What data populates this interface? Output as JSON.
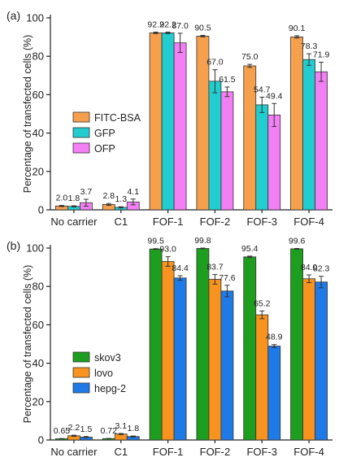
{
  "chart_data": [
    {
      "panel_label": "(a)",
      "type": "bar",
      "ylabel": "Percentage of transfected cells (%)",
      "xlabel": "",
      "ylim": [
        0,
        100
      ],
      "yticks": [
        0,
        20,
        40,
        60,
        80,
        100
      ],
      "grid": false,
      "legend_position": "center-left",
      "categories": [
        "No carrier",
        "C1",
        "FOF-1",
        "FOF-2",
        "FOF-3",
        "FOF-4"
      ],
      "series": [
        {
          "name": "FITC-BSA",
          "color": "#f6a04d",
          "values": [
            2.0,
            2.8,
            92.2,
            90.5,
            75.0,
            90.1
          ],
          "errors": [
            0.3,
            0.5,
            0.4,
            0.4,
            0.8,
            0.6
          ],
          "labels": [
            "2.0",
            "2.8",
            "92.2",
            "90.5",
            "75.0",
            "90.1"
          ]
        },
        {
          "name": "GFP",
          "color": "#22cdd0",
          "values": [
            1.8,
            1.3,
            92.2,
            67.0,
            54.7,
            78.3
          ],
          "errors": [
            0.3,
            0.3,
            0.4,
            6.0,
            4.0,
            3.0
          ],
          "labels": [
            "1.8",
            "1.3",
            "92.2",
            "67.0",
            "54.7",
            "78.3"
          ]
        },
        {
          "name": "OFP",
          "color": "#f27ff3",
          "values": [
            3.7,
            4.1,
            87.0,
            61.5,
            49.4,
            71.9
          ],
          "errors": [
            1.8,
            1.5,
            5.0,
            2.5,
            6.0,
            5.0
          ],
          "labels": [
            "3.7",
            "4.1",
            "87.0",
            "61.5",
            "49.4",
            "71.9"
          ]
        }
      ]
    },
    {
      "panel_label": "(b)",
      "type": "bar",
      "ylabel": "Percentage of transfected cells (%)",
      "xlabel": "",
      "ylim": [
        0,
        100
      ],
      "yticks": [
        0,
        20,
        40,
        60,
        80,
        100
      ],
      "grid": false,
      "legend_position": "center-left",
      "categories": [
        "No carrier",
        "C1",
        "FOF-1",
        "FOF-2",
        "FOF-3",
        "FOF-4"
      ],
      "series": [
        {
          "name": "skov3",
          "color": "#1e9e1e",
          "values": [
            0.65,
            0.72,
            99.5,
            99.8,
            95.4,
            99.6
          ],
          "errors": [
            0.1,
            0.1,
            0.2,
            0.2,
            0.4,
            0.2
          ],
          "labels": [
            "0.65",
            "0.72",
            "99.5",
            "99.8",
            "95.4",
            "99.6"
          ]
        },
        {
          "name": "lovo",
          "color": "#f7931e",
          "values": [
            2.2,
            3.1,
            93.0,
            83.7,
            65.2,
            84.0
          ],
          "errors": [
            0.3,
            0.3,
            2.5,
            2.5,
            2.0,
            2.0
          ],
          "labels": [
            "2.2",
            "3.1",
            "93.0",
            "83.7",
            "65.2",
            "84.0"
          ]
        },
        {
          "name": "hepg-2",
          "color": "#1e7ae6",
          "values": [
            1.5,
            1.8,
            84.4,
            77.6,
            48.9,
            82.3
          ],
          "errors": [
            0.3,
            0.3,
            1.2,
            3.0,
            0.8,
            3.0
          ],
          "labels": [
            "1.5",
            "1.8",
            "84.4",
            "77.6",
            "48.9",
            "82.3"
          ]
        }
      ]
    }
  ]
}
